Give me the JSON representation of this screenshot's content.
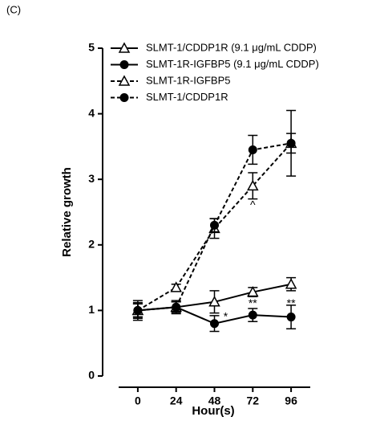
{
  "chart_data": {
    "type": "line",
    "panel": "(C)",
    "xlabel": "Hour(s)",
    "ylabel": "Relative growth",
    "x": [
      0,
      24,
      48,
      72,
      96
    ],
    "xlim": [
      -12,
      108
    ],
    "xticks": [
      0,
      24,
      48,
      72,
      96
    ],
    "ylim": [
      0,
      5
    ],
    "yticks": [
      0,
      1,
      2,
      3,
      4,
      5
    ],
    "series": [
      {
        "name": "SLMT-1/CDDP1R (9.1 μg/mL CDDP)",
        "color": "#000000",
        "line": "solid",
        "marker": "open-triangle",
        "values": [
          1.0,
          1.05,
          1.13,
          1.28,
          1.4
        ],
        "errors": [
          0.15,
          0.08,
          0.17,
          0.07,
          0.1
        ]
      },
      {
        "name": "SLMT-1R-IGFBP5 (9.1 μg/mL CDDP)",
        "color": "#000000",
        "line": "solid",
        "marker": "filled-circle",
        "values": [
          1.0,
          1.05,
          0.8,
          0.93,
          0.9
        ],
        "errors": [
          0.12,
          0.1,
          0.12,
          0.1,
          0.18
        ]
      },
      {
        "name": "SLMT-1R-IGFBP5",
        "color": "#000000",
        "line": "dotted",
        "marker": "open-triangle",
        "values": [
          1.0,
          1.35,
          2.25,
          2.9,
          3.55
        ],
        "errors": [
          0.1,
          0.05,
          0.15,
          0.2,
          0.15
        ]
      },
      {
        "name": "SLMT-1/CDDP1R",
        "color": "#000000",
        "line": "dotted",
        "marker": "filled-circle",
        "values": [
          1.0,
          1.05,
          2.3,
          3.45,
          3.55
        ],
        "errors": [
          0.1,
          0.08,
          0.1,
          0.22,
          0.5
        ]
      }
    ],
    "annotations": [
      "*",
      "**",
      "**",
      "^"
    ]
  }
}
